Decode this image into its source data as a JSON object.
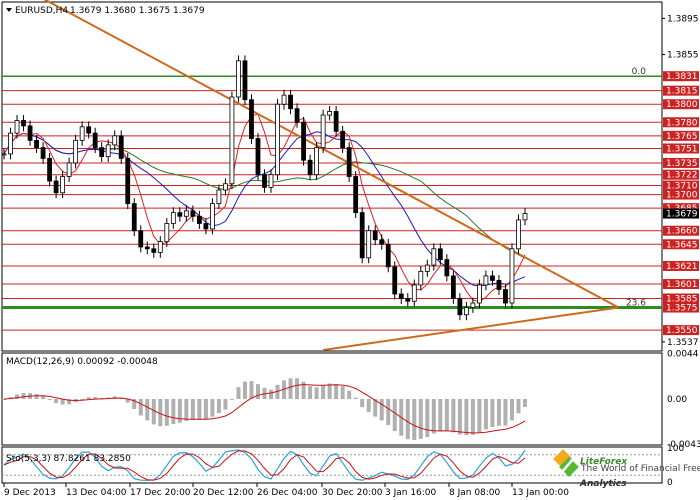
{
  "header": {
    "symbol_timeframe": "EURUSD,H4",
    "ohlc": "1.3679 1.3680 1.3675 1.3679"
  },
  "chart_data": [
    {
      "type": "candlestick",
      "title": "EURUSD,H4",
      "ylim": [
        1.3528,
        1.3912
      ],
      "y_ticks": [
        "1.3895",
        "1.3855",
        "1.3537"
      ],
      "x_ticks": [
        "9 Dec 2013",
        "13 Dec 04:00",
        "17 Dec 20:00",
        "20 Dec 12:00",
        "26 Dec 04:00",
        "30 Dec 20:00",
        "3 Jan 16:00",
        "8 Jan 08:00",
        "13 Jan 00:00"
      ],
      "current_price": "1.3679",
      "close": [
        1.3745,
        1.3768,
        1.3782,
        1.3776,
        1.376,
        1.3752,
        1.374,
        1.3715,
        1.3702,
        1.372,
        1.3735,
        1.376,
        1.3775,
        1.3768,
        1.3752,
        1.3742,
        1.3755,
        1.3765,
        1.374,
        1.369,
        1.366,
        1.3642,
        1.364,
        1.3636,
        1.3648,
        1.3668,
        1.368,
        1.3676,
        1.3682,
        1.3676,
        1.3668,
        1.3662,
        1.369,
        1.3705,
        1.3712,
        1.3808,
        1.3848,
        1.3805,
        1.3762,
        1.3722,
        1.3708,
        1.3722,
        1.38,
        1.381,
        1.3795,
        1.378,
        1.3738,
        1.3722,
        1.3752,
        1.3788,
        1.3792,
        1.377,
        1.3752,
        1.372,
        1.368,
        1.363,
        1.366,
        1.365,
        1.3645,
        1.362,
        1.359,
        1.3585,
        1.3582,
        1.36,
        1.3615,
        1.3622,
        1.364,
        1.3628,
        1.361,
        1.3585,
        1.3567,
        1.3575,
        1.358,
        1.36,
        1.361,
        1.3605,
        1.3595,
        1.358,
        1.364,
        1.3672,
        1.3679
      ],
      "horizontal_levels": [
        1.3831,
        1.3815,
        1.38,
        1.378,
        1.3765,
        1.3751,
        1.3735,
        1.3722,
        1.371,
        1.37,
        1.3685,
        1.366,
        1.3645,
        1.3621,
        1.3601,
        1.3585,
        1.3575,
        1.355
      ],
      "level_labels": [
        "1.3831",
        "1.3815",
        "1.3800",
        "1.3780",
        "1.3765",
        "1.3751",
        "1.3735",
        "1.3722",
        "1.3710",
        "1.3700",
        "1.3685",
        "1.3660",
        "1.3645",
        "1.3621",
        "1.3601",
        "1.3585",
        "1.3575",
        "1.3550"
      ],
      "fib_labels": [
        "0.0",
        "23.6"
      ],
      "fib_levels": [
        1.3831,
        1.3575
      ],
      "trendline_down": {
        "from": [
          0,
          1.394
        ],
        "to": [
          79,
          1.3575
        ]
      },
      "trendline_up": {
        "from": [
          49,
          1.3528
        ],
        "to": [
          79,
          1.3575
        ]
      },
      "ma_slow_color": "#1a1acc",
      "ma_fast_color": "#dd2222",
      "ma_long_color": "#2a7a2a",
      "level_color": "#cc2222",
      "fib_color": "#2d8c1f",
      "trendline_color": "#cc6a1e"
    },
    {
      "type": "bar",
      "title": "MACD(12,26,9) 0.00092 -0.00048",
      "ylim": [
        -0.00435,
        0.00435
      ],
      "y_ticks": [
        "0.0044",
        "0.00",
        "-0.00435"
      ],
      "histogram_color": "#b0b0b0",
      "signal_color": "#cc1010"
    },
    {
      "type": "line",
      "title": "Sto(5,3,3) 87.8261 83.2850",
      "ylim": [
        0,
        100
      ],
      "y_ticks": [
        "100",
        "0"
      ],
      "levels": [
        80,
        20
      ],
      "k_color": "#3aa8d8",
      "d_color": "#cc1010"
    }
  ],
  "watermark": {
    "brand": "LiteForex",
    "tagline": "The World of Financial Freedom",
    "sub": "Analytics"
  }
}
